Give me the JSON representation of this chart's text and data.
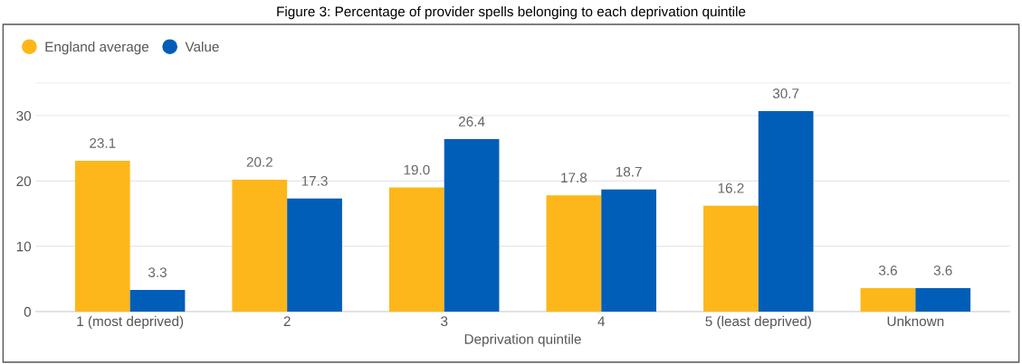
{
  "chart_data": {
    "type": "bar",
    "title": "Figure 3: Percentage of provider spells belonging to each deprivation quintile",
    "xlabel": "Deprivation quintile",
    "categories": [
      "1 (most deprived)",
      "2",
      "3",
      "4",
      "5 (least deprived)",
      "Unknown"
    ],
    "series": [
      {
        "name": "England average",
        "color": "#fdb71a",
        "values": [
          23.1,
          20.2,
          19.0,
          17.8,
          16.2,
          3.6
        ],
        "value_labels": [
          "23.1",
          "20.2",
          "19.0",
          "17.8",
          "16.2",
          "3.6"
        ]
      },
      {
        "name": "Value",
        "color": "#005eb8",
        "values": [
          3.3,
          17.3,
          26.4,
          18.7,
          30.7,
          3.6
        ],
        "value_labels": [
          "3.3",
          "17.3",
          "26.4",
          "18.7",
          "30.7",
          "3.6"
        ]
      }
    ],
    "ylim": [
      0,
      35
    ],
    "yticks": [
      0,
      10,
      20,
      30
    ],
    "grid": "y",
    "legend": "top left"
  }
}
